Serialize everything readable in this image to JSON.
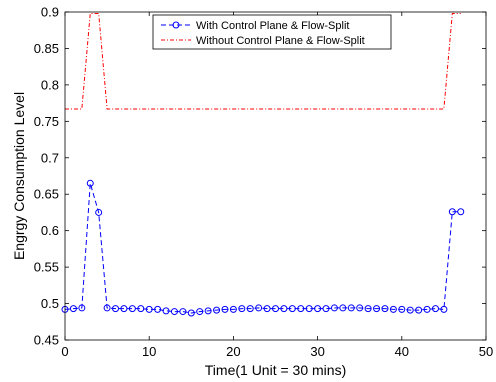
{
  "chart_data": {
    "type": "line",
    "title": "",
    "xlabel": "Time(1 Unit = 30 mins)",
    "ylabel": "Engrgy Consumption Level",
    "xlim": [
      0,
      50
    ],
    "ylim": [
      0.45,
      0.9
    ],
    "xticks": [
      0,
      10,
      20,
      30,
      40,
      50
    ],
    "yticks": [
      0.45,
      0.5,
      0.55,
      0.6,
      0.65,
      0.7,
      0.75,
      0.8,
      0.85,
      0.9
    ],
    "xtick_labels": [
      "0",
      "10",
      "20",
      "30",
      "40",
      "50"
    ],
    "ytick_labels": [
      "0.45",
      "0.5",
      "0.55",
      "0.6",
      "0.65",
      "0.7",
      "0.75",
      "0.8",
      "0.85",
      "0.9"
    ],
    "grid": false,
    "legend_position": "top-right",
    "series": [
      {
        "name": "With Control Plane & Flow-Split",
        "color": "#0000ff",
        "style": "dashed-circle-markers",
        "x": [
          0,
          1,
          2,
          3,
          4,
          5,
          6,
          7,
          8,
          9,
          10,
          11,
          12,
          13,
          14,
          15,
          16,
          17,
          18,
          19,
          20,
          21,
          22,
          23,
          24,
          25,
          26,
          27,
          28,
          29,
          30,
          31,
          32,
          33,
          34,
          35,
          36,
          37,
          38,
          39,
          40,
          41,
          42,
          43,
          44,
          45,
          46,
          47
        ],
        "y": [
          0.492,
          0.493,
          0.494,
          0.665,
          0.625,
          0.494,
          0.493,
          0.493,
          0.493,
          0.493,
          0.492,
          0.492,
          0.49,
          0.489,
          0.489,
          0.487,
          0.489,
          0.49,
          0.491,
          0.492,
          0.492,
          0.493,
          0.493,
          0.494,
          0.493,
          0.493,
          0.493,
          0.493,
          0.493,
          0.493,
          0.493,
          0.493,
          0.494,
          0.494,
          0.494,
          0.494,
          0.493,
          0.493,
          0.493,
          0.492,
          0.492,
          0.491,
          0.491,
          0.492,
          0.493,
          0.492,
          0.626,
          0.626
        ]
      },
      {
        "name": "Without Control Plane & Flow-Split",
        "color": "#ff0000",
        "style": "dash-dot",
        "x": [
          0,
          2,
          3,
          4,
          5,
          45,
          46,
          47
        ],
        "y": [
          0.767,
          0.767,
          0.898,
          0.898,
          0.767,
          0.767,
          0.898,
          0.898
        ]
      }
    ]
  }
}
